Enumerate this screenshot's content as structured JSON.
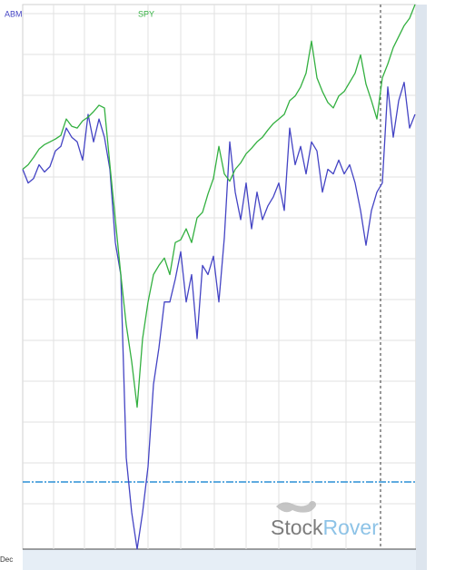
{
  "chart_data": {
    "type": "line",
    "categories": [
      "Dec",
      null,
      null,
      null,
      null,
      null,
      null,
      null,
      null,
      null,
      null,
      null,
      null,
      null,
      null,
      null,
      null,
      null,
      null,
      null,
      null,
      null,
      null,
      null,
      null,
      null,
      null,
      null,
      null,
      null,
      null,
      null,
      null,
      null,
      null,
      null,
      null,
      null,
      null,
      null,
      null,
      null,
      null,
      null,
      null,
      null,
      null,
      null,
      null,
      null,
      null,
      null,
      null,
      null,
      null,
      null,
      null,
      null,
      null,
      null,
      null,
      null,
      null,
      null,
      null,
      null,
      null,
      null,
      null,
      null,
      null,
      null,
      null
    ],
    "series": [
      {
        "name": "ABM",
        "color": "#4444c4",
        "values": [
          420,
          405,
          410,
          425,
          417,
          423,
          440,
          445,
          465,
          455,
          450,
          430,
          480,
          450,
          475,
          455,
          420,
          340,
          305,
          105,
          45,
          5,
          45,
          95,
          185,
          225,
          275,
          275,
          300,
          330,
          275,
          305,
          235,
          315,
          305,
          325,
          275,
          345,
          450,
          395,
          365,
          405,
          355,
          395,
          365,
          380,
          390,
          405,
          375,
          465,
          425,
          445,
          415,
          450,
          440,
          395,
          420,
          415,
          430,
          415,
          425,
          405,
          375,
          337,
          375,
          395,
          405,
          510,
          455,
          495,
          515,
          465,
          480
        ]
      },
      {
        "name": "SPY",
        "color": "#33b040",
        "values": [
          420,
          425,
          433,
          442,
          447,
          450,
          453,
          457,
          475,
          467,
          465,
          473,
          477,
          483,
          490,
          487,
          425,
          365,
          305,
          250,
          210,
          160,
          235,
          275,
          305,
          315,
          323,
          305,
          340,
          343,
          355,
          340,
          367,
          373,
          393,
          410,
          445,
          415,
          407,
          420,
          427,
          437,
          443,
          450,
          455,
          463,
          470,
          475,
          480,
          495,
          500,
          510,
          525,
          560,
          520,
          505,
          493,
          487,
          500,
          505,
          515,
          525,
          545,
          513,
          495,
          475,
          520,
          535,
          553,
          565,
          577,
          585,
          600
        ]
      }
    ]
  },
  "watermark": [
    "Stock",
    "Rover"
  ]
}
